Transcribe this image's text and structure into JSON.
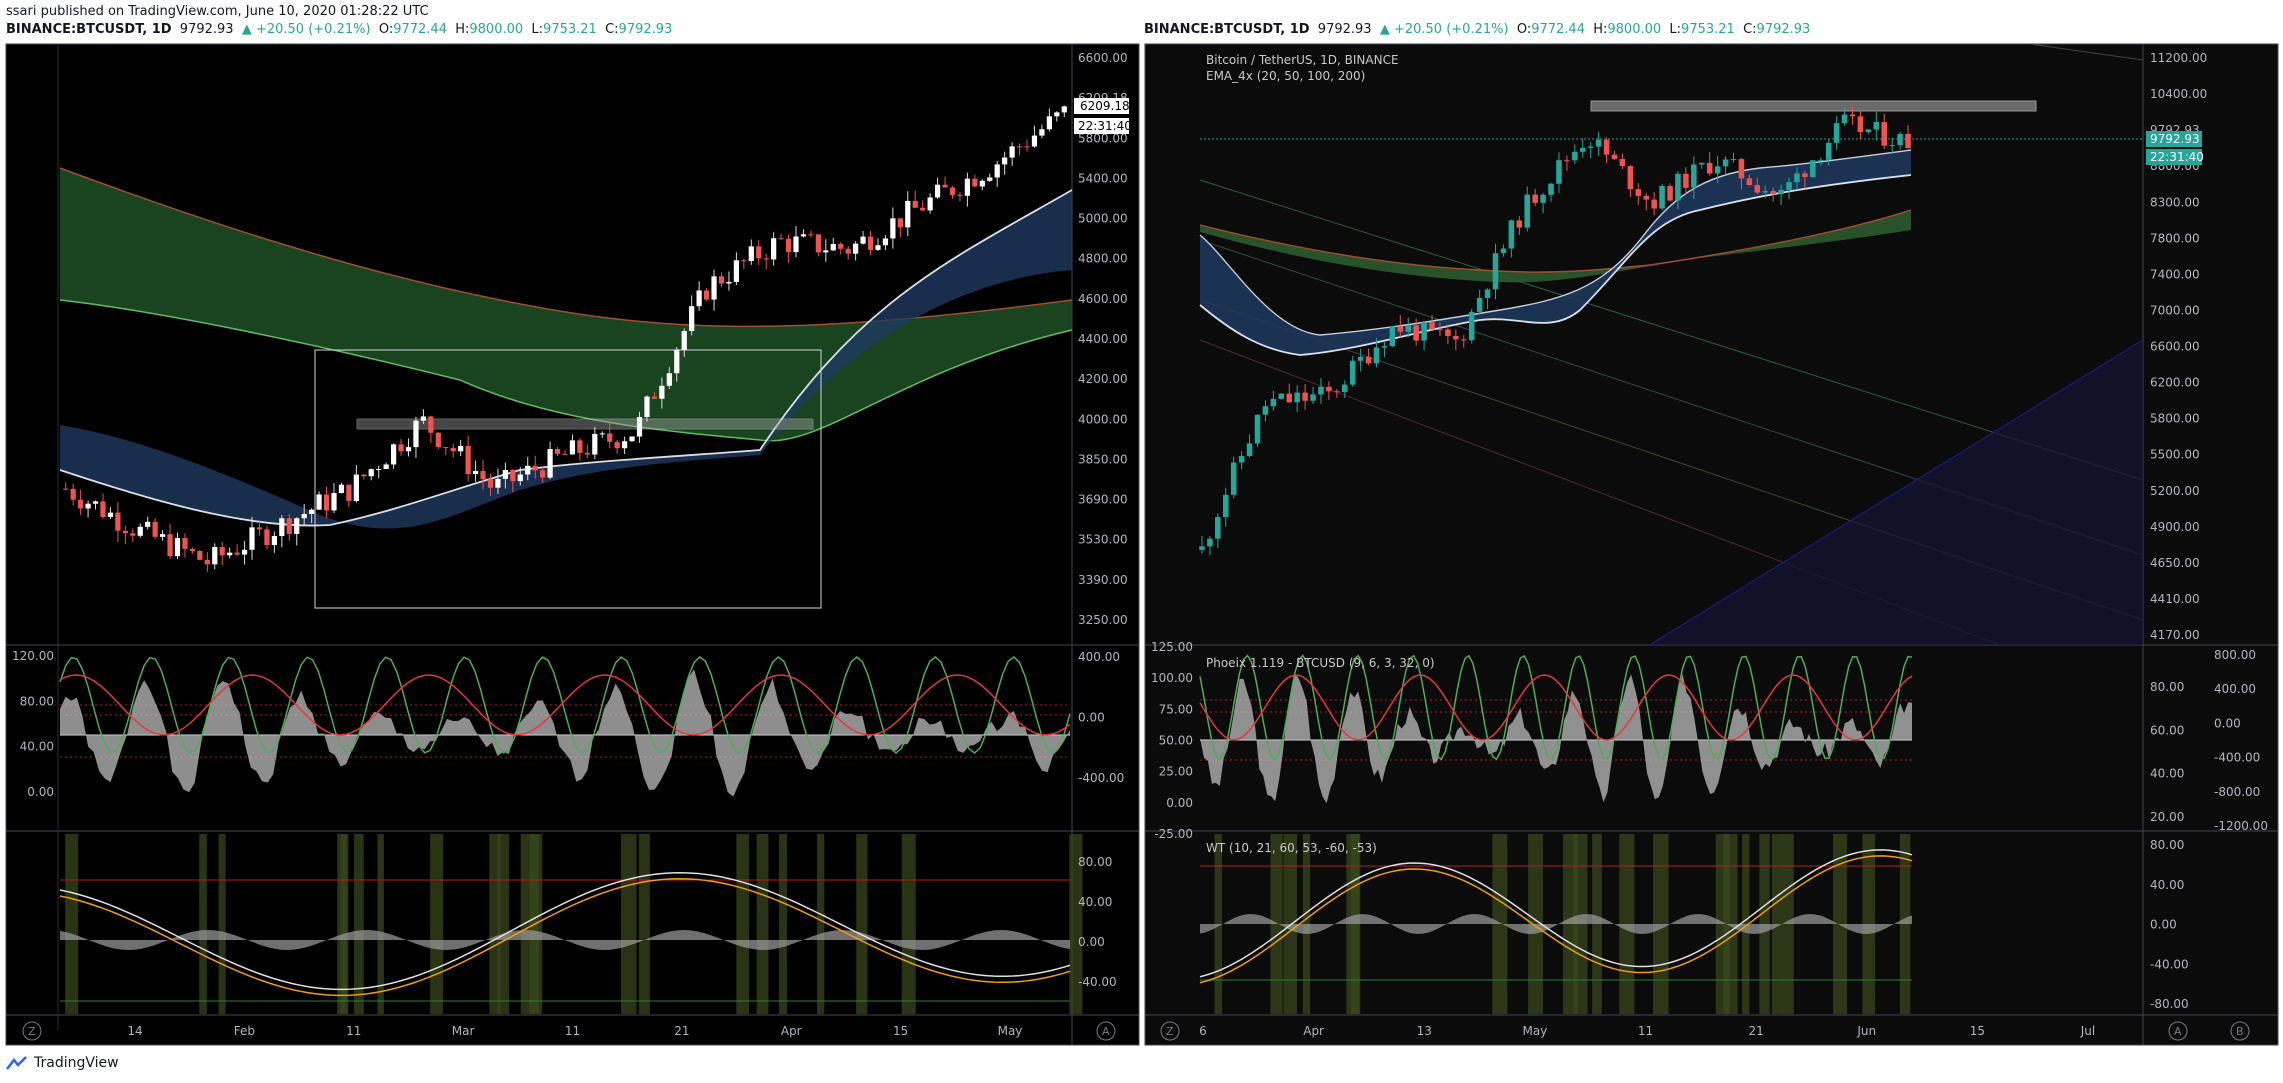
{
  "publish_line": "ssari published on TradingView.com, June 10, 2020 01:28:22 UTC",
  "left_header": {
    "symbol": "BINANCE:BTCUSDT, 1D",
    "price": "9792.93",
    "change": "▲ +20.50 (+0.21%)",
    "o_label": "O:",
    "o": "9772.44",
    "h_label": "H:",
    "h": "9800.00",
    "l_label": "L:",
    "l": "9753.21",
    "c_label": "C:",
    "c": "9792.93"
  },
  "right_header": {
    "symbol": "BINANCE:BTCUSDT, 1D",
    "price": "9792.93",
    "change": "▲ +20.50 (+0.21%)",
    "o_label": "O:",
    "o": "9772.44",
    "h_label": "H:",
    "h": "9800.00",
    "l_label": "L:",
    "l": "9753.21",
    "c_label": "C:",
    "c": "9792.93"
  },
  "footer": {
    "brand": "TradingView"
  },
  "colors": {
    "bg": "#000000",
    "up": "#26a69a",
    "down": "#ef5350",
    "ema_band_fast": "#1e3a5f",
    "ema_band_slow": "#2d5a2d",
    "oscillator_green": "#4caf50",
    "oscillator_red": "#e53935",
    "wt_fast": "#e0e0e0",
    "wt_slow": "#f39c12"
  },
  "chart_data": [
    {
      "type": "candlestick",
      "pane": "left-price",
      "y_scale": "log",
      "y_ticks": [
        "6600.00",
        "6209.18",
        "5800.00",
        "5400.00",
        "5000.00",
        "4800.00",
        "4600.00",
        "4400.00",
        "4200.00",
        "4000.00",
        "3850.00",
        "3690.00",
        "3530.00",
        "3390.00",
        "3250.00"
      ],
      "price_label": "6209.18",
      "timer_label": "22:31:40",
      "x_ticks": [
        "14",
        "Feb",
        "11",
        "Mar",
        "11",
        "21",
        "Apr",
        "15",
        "May"
      ],
      "approx_close_path": [
        {
          "t": "Jan 1",
          "c": 3800
        },
        {
          "t": "Jan 14",
          "c": 3600
        },
        {
          "t": "Jan 28",
          "c": 3450
        },
        {
          "t": "Feb 8",
          "c": 3620
        },
        {
          "t": "Feb 18",
          "c": 3800
        },
        {
          "t": "Feb 24",
          "c": 4150
        },
        {
          "t": "Mar 4",
          "c": 3800
        },
        {
          "t": "Mar 21",
          "c": 3970
        },
        {
          "t": "Apr 1",
          "c": 4100
        },
        {
          "t": "Apr 3",
          "c": 4950
        },
        {
          "t": "Apr 10",
          "c": 5250
        },
        {
          "t": "Apr 20",
          "c": 5200
        },
        {
          "t": "May 1",
          "c": 5500
        },
        {
          "t": "May 8",
          "c": 5800
        },
        {
          "t": "May 14",
          "c": 6209
        }
      ]
    },
    {
      "type": "oscillator",
      "pane": "left-stoch",
      "y_ticks_left": [
        "120.00",
        "80.00",
        "40.00",
        "0.00"
      ],
      "y_ticks_right": [
        "400.00",
        "0.00",
        "-400.00"
      ]
    },
    {
      "type": "oscillator",
      "pane": "left-wt",
      "y_ticks_right": [
        "80.00",
        "40.00",
        "0.00",
        "-40.00"
      ]
    },
    {
      "type": "candlestick",
      "pane": "right-price",
      "title": "Bitcoin / TetherUS, 1D, BINANCE",
      "indicator": "EMA_4x (20, 50, 100, 200)",
      "y_scale": "log",
      "y_ticks": [
        "11200.00",
        "10400.00",
        "9792.93",
        "8800.00",
        "8300.00",
        "7800.00",
        "7400.00",
        "7000.00",
        "6600.00",
        "6200.00",
        "5800.00",
        "5500.00",
        "5200.00",
        "4900.00",
        "4650.00",
        "4410.00",
        "4170.00"
      ],
      "price_label": "9792.93",
      "timer_label": "22:31:40",
      "x_ticks": [
        "6",
        "Apr",
        "13",
        "May",
        "11",
        "21",
        "Jun",
        "15",
        "Jul"
      ],
      "approx_close_path": [
        {
          "t": "Mar 13",
          "c": 4800
        },
        {
          "t": "Mar 20",
          "c": 6200
        },
        {
          "t": "Mar 28",
          "c": 6300
        },
        {
          "t": "Apr 6",
          "c": 7100
        },
        {
          "t": "Apr 20",
          "c": 6900
        },
        {
          "t": "Apr 30",
          "c": 8700
        },
        {
          "t": "May 8",
          "c": 9900
        },
        {
          "t": "May 12",
          "c": 8800
        },
        {
          "t": "May 20",
          "c": 9500
        },
        {
          "t": "May 25",
          "c": 8900
        },
        {
          "t": "Jun 2",
          "c": 10100
        },
        {
          "t": "Jun 10",
          "c": 9793
        }
      ]
    },
    {
      "type": "oscillator",
      "pane": "right-stoch",
      "title": "Phoeix 1.119 - BTCUSD (9, 6, 3, 32, 0)",
      "y_ticks_left": [
        "125.00",
        "100.00",
        "75.00",
        "50.00",
        "25.00",
        "0.00",
        "-25.00"
      ],
      "y_ticks_mid": [
        "80.00",
        "60.00",
        "40.00",
        "20.00"
      ],
      "y_ticks_right": [
        "800.00",
        "400.00",
        "0.00",
        "-400.00",
        "-800.00",
        "-1200.00"
      ]
    },
    {
      "type": "oscillator",
      "pane": "right-wt",
      "title": "WT (10, 21, 60, 53, -60, -53)",
      "y_ticks_right": [
        "80.00",
        "40.00",
        "0.00",
        "-40.00",
        "-80.00"
      ]
    }
  ],
  "corner_labels": {
    "left_z": "Z",
    "left_a": "A",
    "right_z": "Z",
    "right_a": "A",
    "right_b": "B"
  }
}
